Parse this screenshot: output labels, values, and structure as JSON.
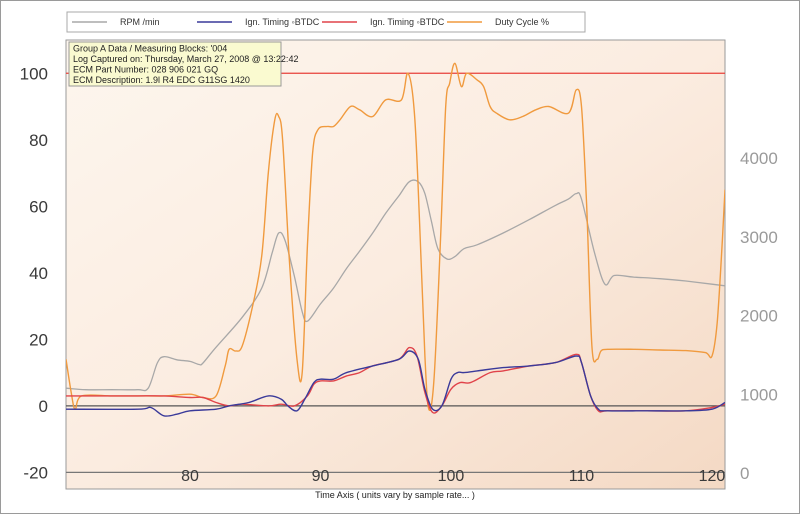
{
  "chart_data": {
    "type": "line",
    "xlabel": "Time Axis ( units vary by sample rate... )",
    "xlim": [
      70.5,
      121
    ],
    "x_ticks": [
      "80",
      "90",
      "100",
      "110",
      "120"
    ],
    "y_left": {
      "lim": [
        -25,
        110
      ],
      "ticks": [
        "-20",
        "0",
        "20",
        "40",
        "60",
        "80",
        "100"
      ]
    },
    "y_right": {
      "lim": [
        -200,
        5500
      ],
      "ticks": [
        "0",
        "1000",
        "2000",
        "3000",
        "4000"
      ]
    },
    "info_box": [
      "Group A Data / Measuring Blocks: '004",
      "Log Captured on: Thursday, March 27, 2008 @ 13:22:42",
      "ECM Part Number: 028 906 021 GQ",
      "ECM Description: 1.9l R4 EDC  G11SG  1420"
    ],
    "legend_position": "top",
    "reference_lines": [
      {
        "axis": "left",
        "value": 100,
        "color": "#e8413a"
      },
      {
        "axis": "left",
        "value": 0,
        "color": "#555555"
      },
      {
        "axis": "left",
        "value": -20,
        "color": "#777777"
      }
    ],
    "series": [
      {
        "name": "RPM /min",
        "axis": "right",
        "color": "#a8a8a8",
        "points": [
          [
            70.5,
            1080
          ],
          [
            72,
            1060
          ],
          [
            74,
            1060
          ],
          [
            76,
            1060
          ],
          [
            76.8,
            1080
          ],
          [
            77.5,
            1400
          ],
          [
            78,
            1480
          ],
          [
            79,
            1440
          ],
          [
            80,
            1420
          ],
          [
            80.7,
            1380
          ],
          [
            81,
            1400
          ],
          [
            82,
            1600
          ],
          [
            84,
            1980
          ],
          [
            85.5,
            2350
          ],
          [
            86.3,
            2800
          ],
          [
            86.8,
            3050
          ],
          [
            87.3,
            2950
          ],
          [
            88,
            2500
          ],
          [
            88.6,
            2050
          ],
          [
            89,
            1930
          ],
          [
            90,
            2150
          ],
          [
            91,
            2350
          ],
          [
            92,
            2600
          ],
          [
            93,
            2820
          ],
          [
            94,
            3050
          ],
          [
            95,
            3300
          ],
          [
            96,
            3520
          ],
          [
            96.8,
            3700
          ],
          [
            97.5,
            3700
          ],
          [
            98,
            3550
          ],
          [
            98.5,
            3200
          ],
          [
            99,
            2850
          ],
          [
            99.7,
            2720
          ],
          [
            100.3,
            2750
          ],
          [
            101,
            2850
          ],
          [
            102,
            2900
          ],
          [
            104,
            3050
          ],
          [
            106,
            3220
          ],
          [
            108,
            3400
          ],
          [
            109,
            3480
          ],
          [
            109.6,
            3550
          ],
          [
            110,
            3480
          ],
          [
            111,
            2800
          ],
          [
            111.8,
            2400
          ],
          [
            112.5,
            2510
          ],
          [
            114,
            2490
          ],
          [
            116,
            2470
          ],
          [
            118,
            2440
          ],
          [
            120,
            2400
          ],
          [
            121,
            2380
          ]
        ]
      },
      {
        "name": "Ign. Timing ◦BTDC",
        "axis": "left",
        "color": "#3a3a9a",
        "points": [
          [
            70.5,
            -1
          ],
          [
            76,
            -1
          ],
          [
            77,
            -0.5
          ],
          [
            78,
            -3
          ],
          [
            79,
            -2.5
          ],
          [
            80,
            -1.5
          ],
          [
            82,
            -1
          ],
          [
            83,
            0
          ],
          [
            84.5,
            1
          ],
          [
            86,
            3
          ],
          [
            87,
            2
          ],
          [
            87.5,
            0
          ],
          [
            88.2,
            -1.5
          ],
          [
            88.8,
            2
          ],
          [
            89.5,
            7
          ],
          [
            90,
            8
          ],
          [
            91,
            8
          ],
          [
            92,
            10
          ],
          [
            94,
            12
          ],
          [
            96,
            14
          ],
          [
            96.8,
            16.5
          ],
          [
            97.5,
            14
          ],
          [
            98,
            5
          ],
          [
            98.6,
            -1
          ],
          [
            99.3,
            0
          ],
          [
            100,
            8
          ],
          [
            100.5,
            10
          ],
          [
            101,
            10
          ],
          [
            102,
            10.5
          ],
          [
            104,
            11.5
          ],
          [
            106,
            12
          ],
          [
            108,
            13
          ],
          [
            109.6,
            15
          ],
          [
            110,
            13
          ],
          [
            110.7,
            3
          ],
          [
            111.3,
            -1
          ],
          [
            112,
            -1.5
          ],
          [
            115,
            -1.5
          ],
          [
            118,
            -1.5
          ],
          [
            120,
            -1
          ],
          [
            121,
            1
          ]
        ]
      },
      {
        "name": "Ign. Timing ◦BTDC",
        "axis": "left",
        "color": "#e0434a",
        "points": [
          [
            70.5,
            3
          ],
          [
            72,
            3
          ],
          [
            74,
            3
          ],
          [
            76,
            3
          ],
          [
            78,
            3
          ],
          [
            80,
            2.5
          ],
          [
            81,
            2.5
          ],
          [
            82,
            1
          ],
          [
            83,
            0
          ],
          [
            84,
            0.5
          ],
          [
            86,
            0
          ],
          [
            87,
            0.5
          ],
          [
            88,
            0
          ],
          [
            89,
            3
          ],
          [
            89.5,
            6.5
          ],
          [
            90,
            7.5
          ],
          [
            91,
            7.5
          ],
          [
            92,
            9
          ],
          [
            93,
            10
          ],
          [
            94,
            12
          ],
          [
            96,
            14
          ],
          [
            96.8,
            17.5
          ],
          [
            97.4,
            15
          ],
          [
            98,
            4
          ],
          [
            98.6,
            -2
          ],
          [
            99.3,
            0
          ],
          [
            100,
            5
          ],
          [
            100.7,
            7
          ],
          [
            101.5,
            7
          ],
          [
            103,
            10
          ],
          [
            104,
            10.5
          ],
          [
            106,
            12
          ],
          [
            108,
            13
          ],
          [
            109.6,
            15.5
          ],
          [
            110,
            13
          ],
          [
            110.7,
            3
          ],
          [
            111.3,
            -1.5
          ],
          [
            112,
            -1.5
          ],
          [
            115,
            -1.5
          ],
          [
            118,
            -1.5
          ],
          [
            120,
            -0.5
          ],
          [
            121,
            0.5
          ]
        ]
      },
      {
        "name": "Duty Cycle %",
        "axis": "left",
        "color": "#f09a3e",
        "points": [
          [
            70.5,
            14
          ],
          [
            70.9,
            4
          ],
          [
            71.2,
            -1
          ],
          [
            71.7,
            3
          ],
          [
            74,
            3
          ],
          [
            76,
            3
          ],
          [
            78,
            3
          ],
          [
            80,
            3.5
          ],
          [
            81,
            2.5
          ],
          [
            82,
            3
          ],
          [
            82.7,
            12
          ],
          [
            83,
            17
          ],
          [
            83.5,
            16.5
          ],
          [
            84,
            18
          ],
          [
            84.8,
            30
          ],
          [
            85.5,
            45
          ],
          [
            86,
            70
          ],
          [
            86.5,
            86
          ],
          [
            86.8,
            87
          ],
          [
            87.1,
            80
          ],
          [
            87.6,
            45
          ],
          [
            88.2,
            14
          ],
          [
            88.6,
            10
          ],
          [
            89,
            48
          ],
          [
            89.4,
            76
          ],
          [
            89.8,
            83
          ],
          [
            90.5,
            84
          ],
          [
            91,
            84
          ],
          [
            91.5,
            86
          ],
          [
            92.3,
            90
          ],
          [
            93,
            89
          ],
          [
            94,
            87
          ],
          [
            95,
            92
          ],
          [
            96.2,
            92
          ],
          [
            96.7,
            100
          ],
          [
            97.2,
            88
          ],
          [
            97.6,
            55
          ],
          [
            98,
            15
          ],
          [
            98.3,
            -1
          ],
          [
            98.7,
            8
          ],
          [
            99.2,
            50
          ],
          [
            99.6,
            90
          ],
          [
            99.9,
            97
          ],
          [
            100.3,
            103
          ],
          [
            100.8,
            96
          ],
          [
            101.2,
            100
          ],
          [
            102,
            98
          ],
          [
            102.5,
            96
          ],
          [
            103,
            90
          ],
          [
            103.5,
            88
          ],
          [
            104.5,
            86
          ],
          [
            105.5,
            87
          ],
          [
            106.5,
            89
          ],
          [
            107.5,
            90
          ],
          [
            109,
            88
          ],
          [
            109.6,
            95
          ],
          [
            110,
            90
          ],
          [
            110.4,
            60
          ],
          [
            110.8,
            18
          ],
          [
            111.2,
            14
          ],
          [
            111.5,
            16.5
          ],
          [
            112,
            17
          ],
          [
            114,
            17
          ],
          [
            116,
            16.8
          ],
          [
            118,
            16.6
          ],
          [
            119.5,
            16
          ],
          [
            120,
            15
          ],
          [
            120.4,
            25
          ],
          [
            120.8,
            50
          ],
          [
            121,
            65
          ]
        ]
      }
    ]
  }
}
